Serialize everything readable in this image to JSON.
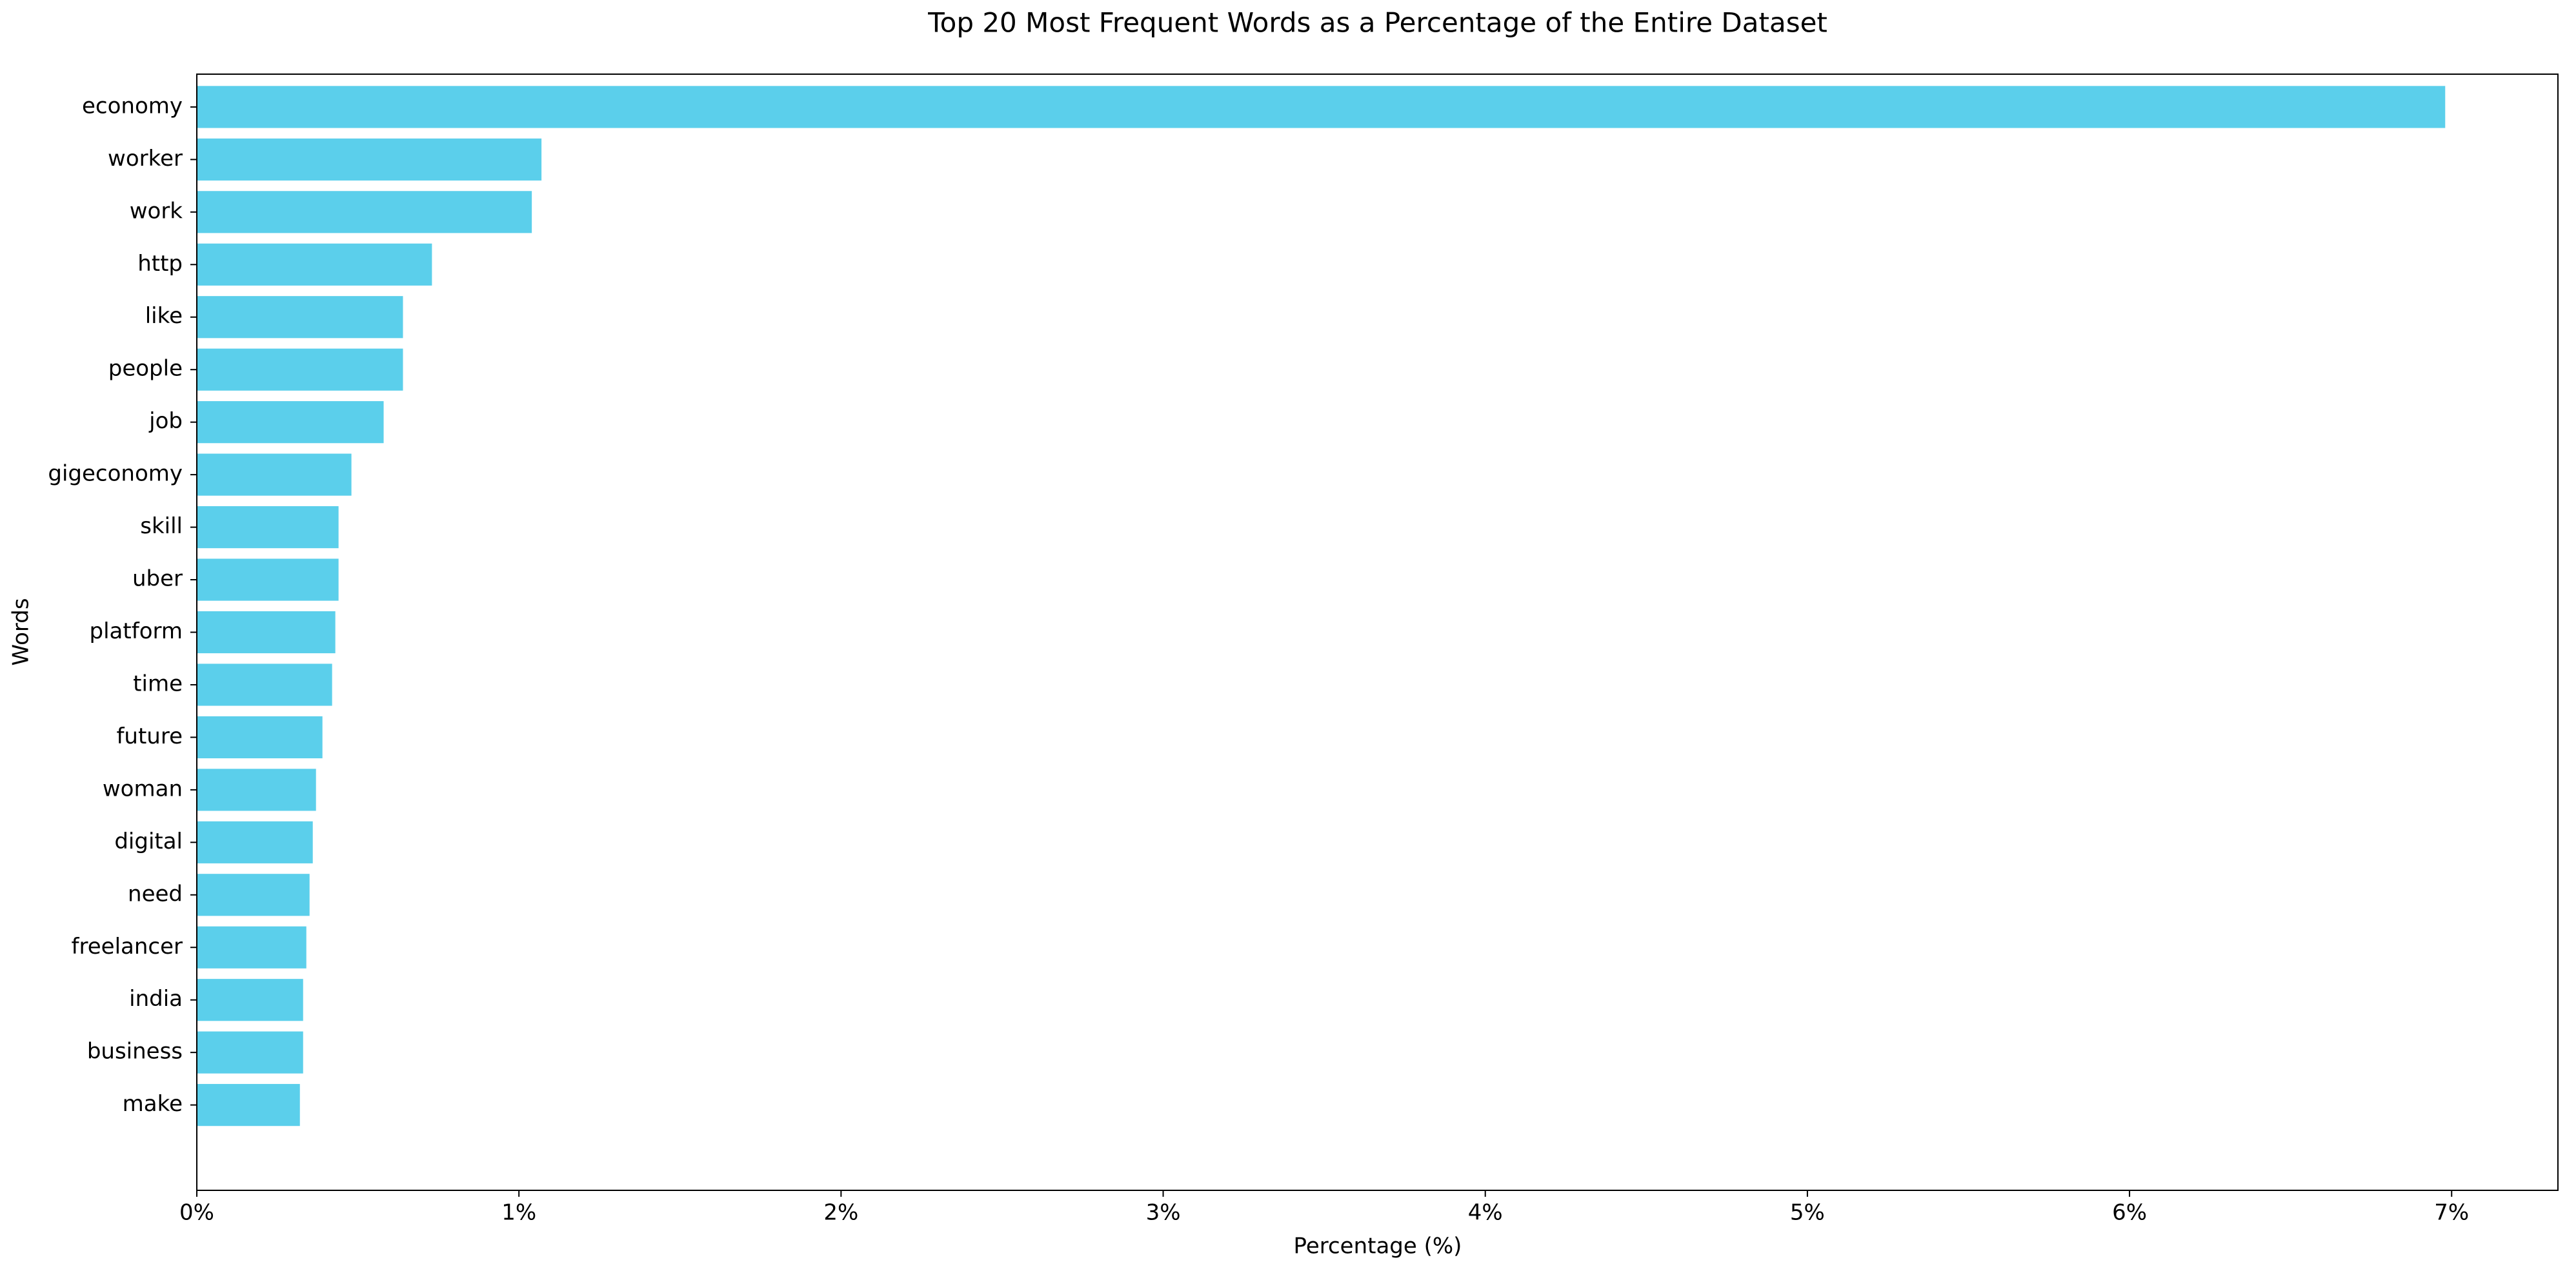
{
  "chart_data": {
    "type": "barh",
    "title": "Top 20 Most Frequent Words as a Percentage of the Entire Dataset",
    "xlabel": "Percentage (%)",
    "ylabel": "Words",
    "categories": [
      "economy",
      "worker",
      "work",
      "http",
      "like",
      "people",
      "job",
      "gigeconomy",
      "skill",
      "uber",
      "platform",
      "time",
      "future",
      "woman",
      "digital",
      "need",
      "freelancer",
      "india",
      "business",
      "make"
    ],
    "values": [
      6.98,
      1.07,
      1.04,
      0.73,
      0.64,
      0.64,
      0.58,
      0.48,
      0.44,
      0.44,
      0.43,
      0.42,
      0.39,
      0.37,
      0.36,
      0.35,
      0.34,
      0.33,
      0.33,
      0.32
    ],
    "color": "#5bcfeb",
    "xlim": [
      0,
      7.33
    ],
    "xticks": [
      {
        "value": 0,
        "label": "0%"
      },
      {
        "value": 1,
        "label": "1%"
      },
      {
        "value": 2,
        "label": "2%"
      },
      {
        "value": 3,
        "label": "3%"
      },
      {
        "value": 4,
        "label": "4%"
      },
      {
        "value": 5,
        "label": "5%"
      },
      {
        "value": 6,
        "label": "6%"
      },
      {
        "value": 7,
        "label": "7%"
      }
    ],
    "grid": false
  }
}
